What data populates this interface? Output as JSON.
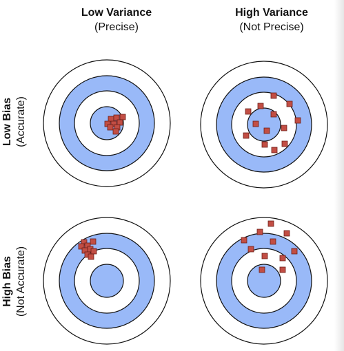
{
  "columns": [
    {
      "title": "Low Variance",
      "subtitle": "(Precise)"
    },
    {
      "title": "High Variance",
      "subtitle": "(Not Precise)"
    }
  ],
  "rows": [
    {
      "title": "Low Bias",
      "subtitle": "(Accurate)"
    },
    {
      "title": "High Bias",
      "subtitle": "(Not Accurate)"
    }
  ],
  "colors": {
    "ring_blue": "#99b9f8",
    "ring_white": "#ffffff",
    "ring_stroke": "#111111",
    "marker_fill": "#c24e44",
    "marker_stroke": "#6b1f18"
  }
}
